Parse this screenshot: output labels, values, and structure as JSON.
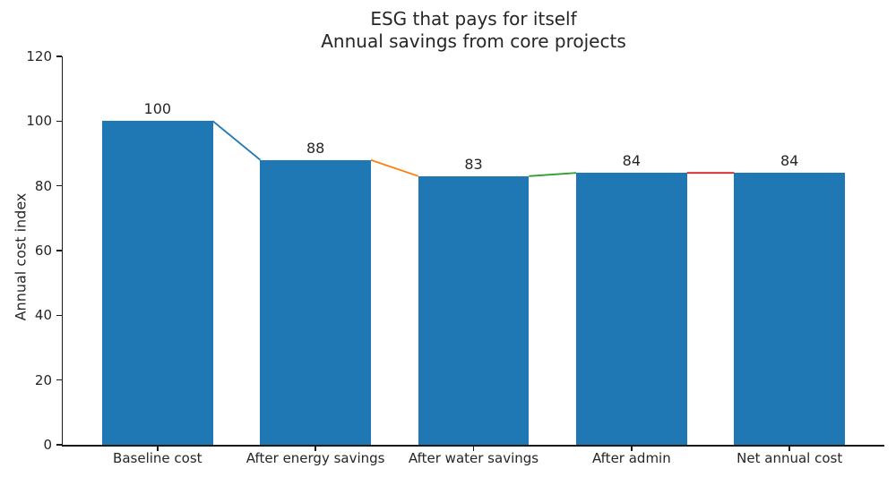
{
  "chart_data": {
    "type": "bar",
    "title": "ESG that pays for itself",
    "subtitle": "Annual savings from core projects",
    "categories": [
      "Baseline cost",
      "After energy savings",
      "After water savings",
      "After admin",
      "Net annual cost"
    ],
    "values": [
      100,
      88,
      83,
      84,
      84
    ],
    "bar_value_labels": [
      "100",
      "88",
      "83",
      "84",
      "84"
    ],
    "xlabel": "",
    "ylabel": "Annual cost index",
    "ylim": [
      0,
      120
    ],
    "yticks": [
      0,
      20,
      40,
      60,
      80,
      100,
      120
    ],
    "grid": false,
    "legend": null,
    "bar_color": "#1f77b4",
    "connector_colors": [
      "#1f77b4",
      "#ff7f0e",
      "#2ca02c",
      "#d62728"
    ],
    "text_color": "#262626",
    "axis_color": "#1a1a1a"
  }
}
